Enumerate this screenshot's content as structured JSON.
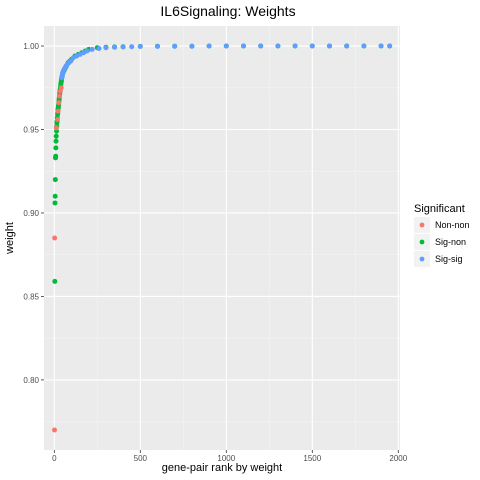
{
  "chart_data": {
    "type": "scatter",
    "title": "IL6Signaling: Weights",
    "xlabel": "gene-pair rank by weight",
    "ylabel": "weight",
    "xlim": [
      -60,
      2010
    ],
    "ylim": [
      0.758,
      1.012
    ],
    "x_ticks": [
      0,
      500,
      1000,
      1500,
      2000
    ],
    "x_tick_labels": [
      "0",
      "500",
      "1000",
      "1500",
      "2000"
    ],
    "y_ticks": [
      0.8,
      0.85,
      0.9,
      0.95,
      1.0
    ],
    "y_tick_labels": [
      "0.80",
      "0.85",
      "0.90",
      "0.95",
      "1.00"
    ],
    "grid": true,
    "legend": {
      "title": "Significant",
      "position": "right",
      "entries": [
        {
          "name": "Non-non",
          "color": "#F8766D"
        },
        {
          "name": "Sig-non",
          "color": "#00BA38"
        },
        {
          "name": "Sig-sig",
          "color": "#619CFF"
        }
      ]
    },
    "series": [
      {
        "name": "Non-non",
        "color": "#F8766D",
        "x": [
          1,
          2,
          12,
          18,
          22,
          26,
          30,
          35,
          40
        ],
        "y": [
          0.77,
          0.885,
          0.951,
          0.956,
          0.961,
          0.966,
          0.97,
          0.973,
          0.975
        ]
      },
      {
        "name": "Sig-non",
        "color": "#00BA38",
        "x": [
          3,
          4,
          5,
          6,
          7,
          8,
          9,
          10,
          11,
          13,
          14,
          15,
          16,
          17,
          19,
          20,
          21,
          23,
          24,
          25,
          27,
          28,
          29,
          31,
          32,
          33,
          34,
          36,
          37,
          38,
          39,
          41,
          42,
          43,
          45,
          48,
          50,
          55,
          60,
          65,
          70,
          80,
          90,
          100,
          120,
          140,
          160,
          180,
          200,
          250,
          300,
          350,
          400,
          500,
          600,
          700,
          800,
          900,
          1000,
          1100,
          1200,
          1300,
          1400,
          1500,
          1600,
          1700,
          1800,
          1900,
          1950
        ],
        "y": [
          0.859,
          0.906,
          0.91,
          0.92,
          0.933,
          0.934,
          0.939,
          0.943,
          0.946,
          0.949,
          0.952,
          0.954,
          0.955,
          0.957,
          0.959,
          0.96,
          0.962,
          0.963,
          0.964,
          0.965,
          0.967,
          0.968,
          0.969,
          0.971,
          0.972,
          0.973,
          0.974,
          0.975,
          0.976,
          0.977,
          0.978,
          0.979,
          0.98,
          0.981,
          0.982,
          0.983,
          0.984,
          0.985,
          0.986,
          0.987,
          0.988,
          0.99,
          0.991,
          0.992,
          0.994,
          0.995,
          0.996,
          0.997,
          0.998,
          0.999,
          0.9993,
          0.9995,
          0.9996,
          0.9998,
          0.9999,
          0.9999,
          0.9999,
          1.0,
          1.0,
          1.0,
          1.0,
          1.0,
          1.0,
          1.0,
          1.0,
          1.0,
          1.0,
          1.0,
          1.0
        ]
      },
      {
        "name": "Sig-sig",
        "color": "#619CFF",
        "x": [
          44,
          46,
          47,
          49,
          52,
          57,
          62,
          68,
          75,
          85,
          95,
          110,
          130,
          150,
          170,
          190,
          220,
          260,
          300,
          350,
          400,
          450,
          500,
          600,
          700,
          800,
          900,
          1000,
          1100,
          1200,
          1300,
          1400,
          1500,
          1600,
          1700,
          1800,
          1900,
          1950
        ],
        "y": [
          0.981,
          0.982,
          0.983,
          0.984,
          0.985,
          0.986,
          0.987,
          0.988,
          0.989,
          0.99,
          0.991,
          0.993,
          0.994,
          0.995,
          0.996,
          0.997,
          0.998,
          0.9985,
          0.999,
          0.9993,
          0.9995,
          0.9996,
          0.9997,
          0.9998,
          0.9999,
          0.9999,
          1.0,
          1.0,
          1.0,
          1.0,
          1.0,
          1.0,
          1.0,
          1.0,
          1.0,
          1.0,
          1.0,
          1.0
        ]
      }
    ]
  }
}
